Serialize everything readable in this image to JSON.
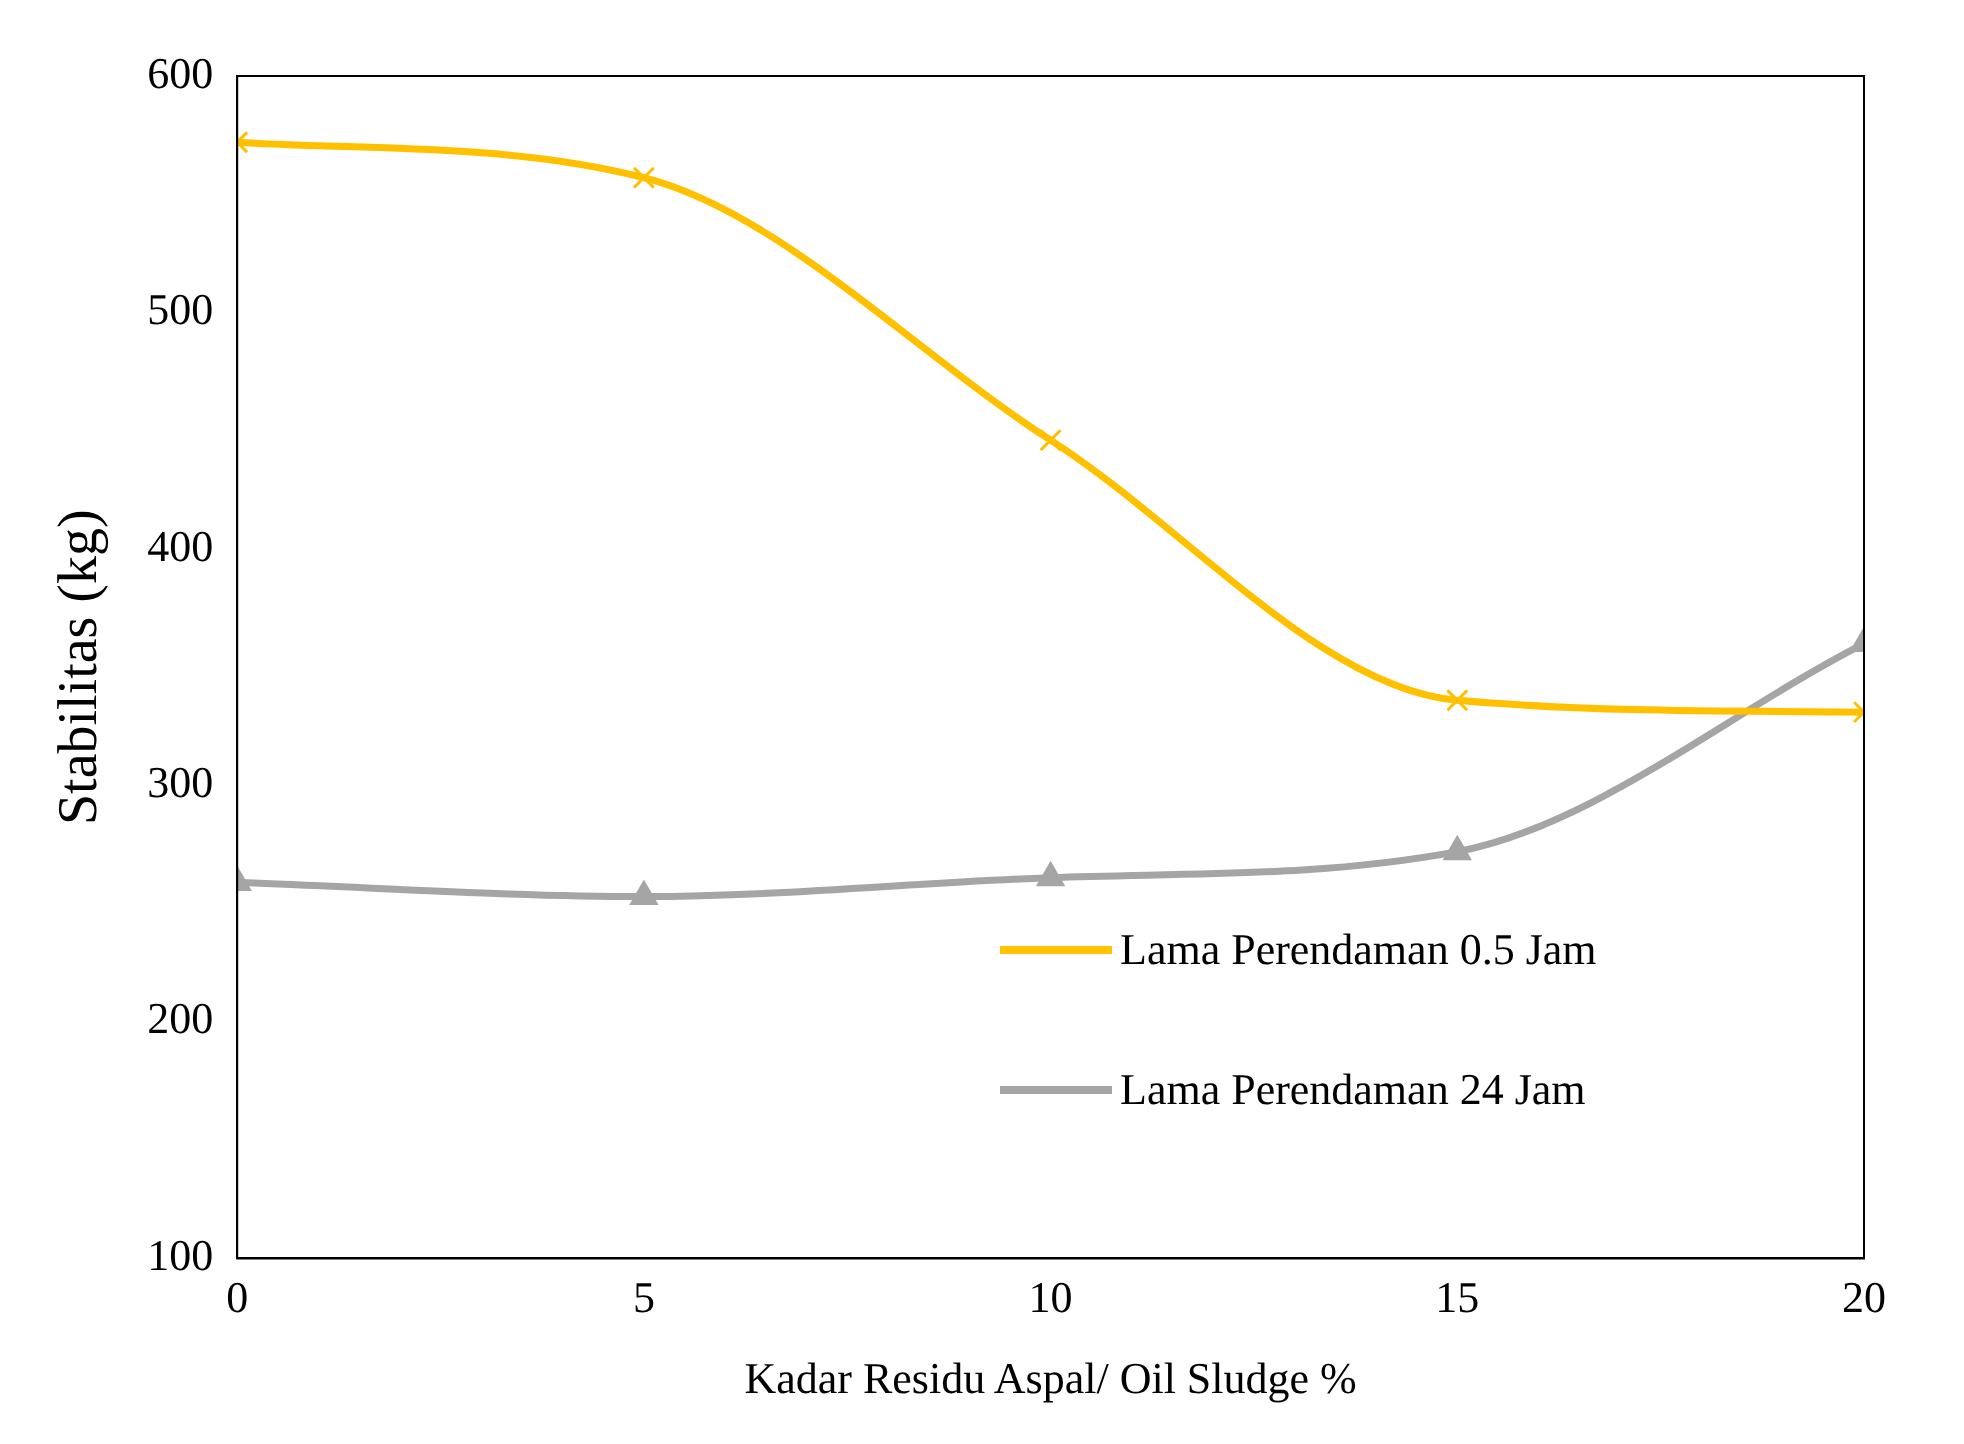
{
  "chart_data": {
    "type": "line",
    "xlabel": "Kadar Residu Aspal/ Oil Sludge %",
    "ylabel": "Stabilitas (kg)",
    "x": [
      0,
      5,
      10,
      15,
      20
    ],
    "series": [
      {
        "name": "Lama Perendaman 0.5 Jam",
        "color": "#ffc000",
        "marker": "cross",
        "values": [
          572,
          557,
          446,
          336,
          331
        ]
      },
      {
        "name": "Lama Perendaman 24 Jam",
        "color": "#a5a5a5",
        "marker": "triangle",
        "values": [
          259,
          253,
          261,
          272,
          360
        ]
      }
    ],
    "xlim": [
      0,
      20
    ],
    "xticks": [
      0,
      5,
      10,
      15,
      20
    ],
    "ylim": [
      100,
      600
    ],
    "yticks": [
      100,
      200,
      300,
      400,
      500,
      600
    ],
    "grid": false,
    "legend": "bottom right",
    "line_style": "solid"
  }
}
